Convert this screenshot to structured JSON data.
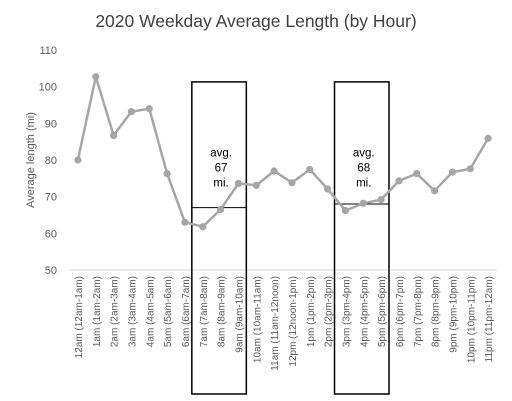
{
  "chart_data": {
    "type": "line",
    "title": "2020 Weekday Average Length (by Hour)",
    "xlabel": "",
    "ylabel": "Average length (mi)",
    "ylim": [
      50,
      110
    ],
    "yticks": [
      50,
      60,
      70,
      80,
      90,
      100,
      110
    ],
    "grid": false,
    "legend": "none",
    "colors": {
      "line": "#a6a6a6",
      "axis": "#d9d9d9",
      "box": "#000000"
    },
    "categories": [
      "12am (12am-1am)",
      "1am (1am-2am)",
      "2am (2am-3am)",
      "3am (3am-4am)",
      "4am (4am-5am)",
      "5am (5am-6am)",
      "6am (6am-7am)",
      "7am (7am-8am)",
      "8am (8am-9am)",
      "9am (9am-10am)",
      "10am (10am-11am)",
      "11am (11am-12noon)",
      "12pm (12noon-1pm)",
      "1pm (1pm-2pm)",
      "2pm (2pm-3pm)",
      "3pm (3pm-4pm)",
      "4pm (4pm-5pm)",
      "5pm (5pm-6pm)",
      "6pm (6pm-7pm)",
      "7pm (7pm-8pm)",
      "8pm (8pm-9pm)",
      "9pm (9pm-10pm)",
      "10pm (10pm-11pm)",
      "11pm (11pm-12am)"
    ],
    "series": [
      {
        "values": [
          80.0,
          102.7,
          86.7,
          93.2,
          94.0,
          76.3,
          63.0,
          61.8,
          66.5,
          73.6,
          73.1,
          77.0,
          73.8,
          77.4,
          72.1,
          66.2,
          68.2,
          69.2,
          74.3,
          76.3,
          71.6,
          76.7,
          77.6,
          85.9
        ]
      }
    ],
    "annotations": [
      {
        "label": "avg.\n67\nmi.",
        "category_range": [
          7,
          9
        ],
        "value": 67
      },
      {
        "label": "avg.\n68\nmi.",
        "category_range": [
          15,
          17
        ],
        "value": 68
      }
    ]
  }
}
